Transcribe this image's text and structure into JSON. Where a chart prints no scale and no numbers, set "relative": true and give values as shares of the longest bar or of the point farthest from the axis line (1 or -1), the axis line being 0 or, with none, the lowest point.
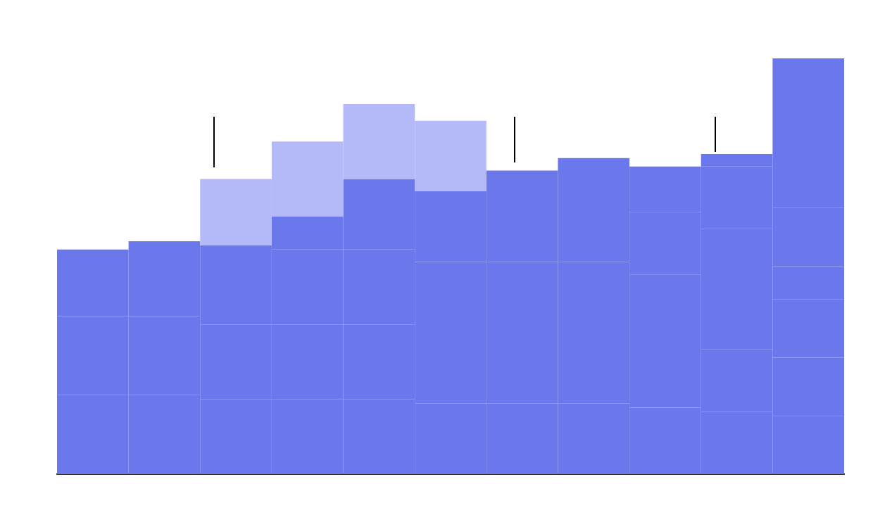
{
  "chart_data": {
    "type": "bar",
    "stacked": true,
    "relative": true,
    "categories": [
      null,
      null,
      null,
      null,
      null,
      null,
      null,
      null,
      null,
      null,
      null
    ],
    "series": [
      {
        "color": "#6a78ec",
        "values": [
          0.19,
          0.19,
          0.18,
          0.18,
          0.18,
          0.17,
          0.17,
          0.17,
          0.16,
          0.15,
          0.14
        ]
      },
      {
        "color": "#6a78ec",
        "values": [
          0.19,
          0.19,
          0.18,
          0.18,
          0.18,
          0.17,
          0.17,
          0.17,
          0.16,
          0.15,
          0.14
        ]
      },
      {
        "color": "#6a78ec",
        "values": [
          0.16,
          0.18,
          0.19,
          0.18,
          0.18,
          0.17,
          0.17,
          0.17,
          0.16,
          0.15,
          0.14
        ]
      },
      {
        "color": "#6a78ec",
        "values": [
          null,
          null,
          null,
          0.08,
          0.17,
          0.17,
          0.17,
          0.17,
          0.15,
          0.14,
          0.08
        ]
      },
      {
        "color": "#6a78ec",
        "values": [
          null,
          null,
          null,
          null,
          null,
          null,
          0.05,
          0.08,
          0.11,
          0.15,
          0.14
        ]
      },
      {
        "color": "#6a78ec",
        "values": [
          null,
          null,
          null,
          null,
          null,
          null,
          null,
          null,
          null,
          0.03,
          0.13
        ]
      },
      {
        "color": "#6a78ec",
        "values": [
          null,
          null,
          null,
          null,
          null,
          null,
          null,
          null,
          null,
          null,
          0.23
        ]
      },
      {
        "color": "#b4baf7",
        "values": [
          null,
          null,
          0.16,
          0.18,
          0.18,
          0.17,
          null,
          null,
          null,
          null,
          null
        ]
      }
    ]
  }
}
